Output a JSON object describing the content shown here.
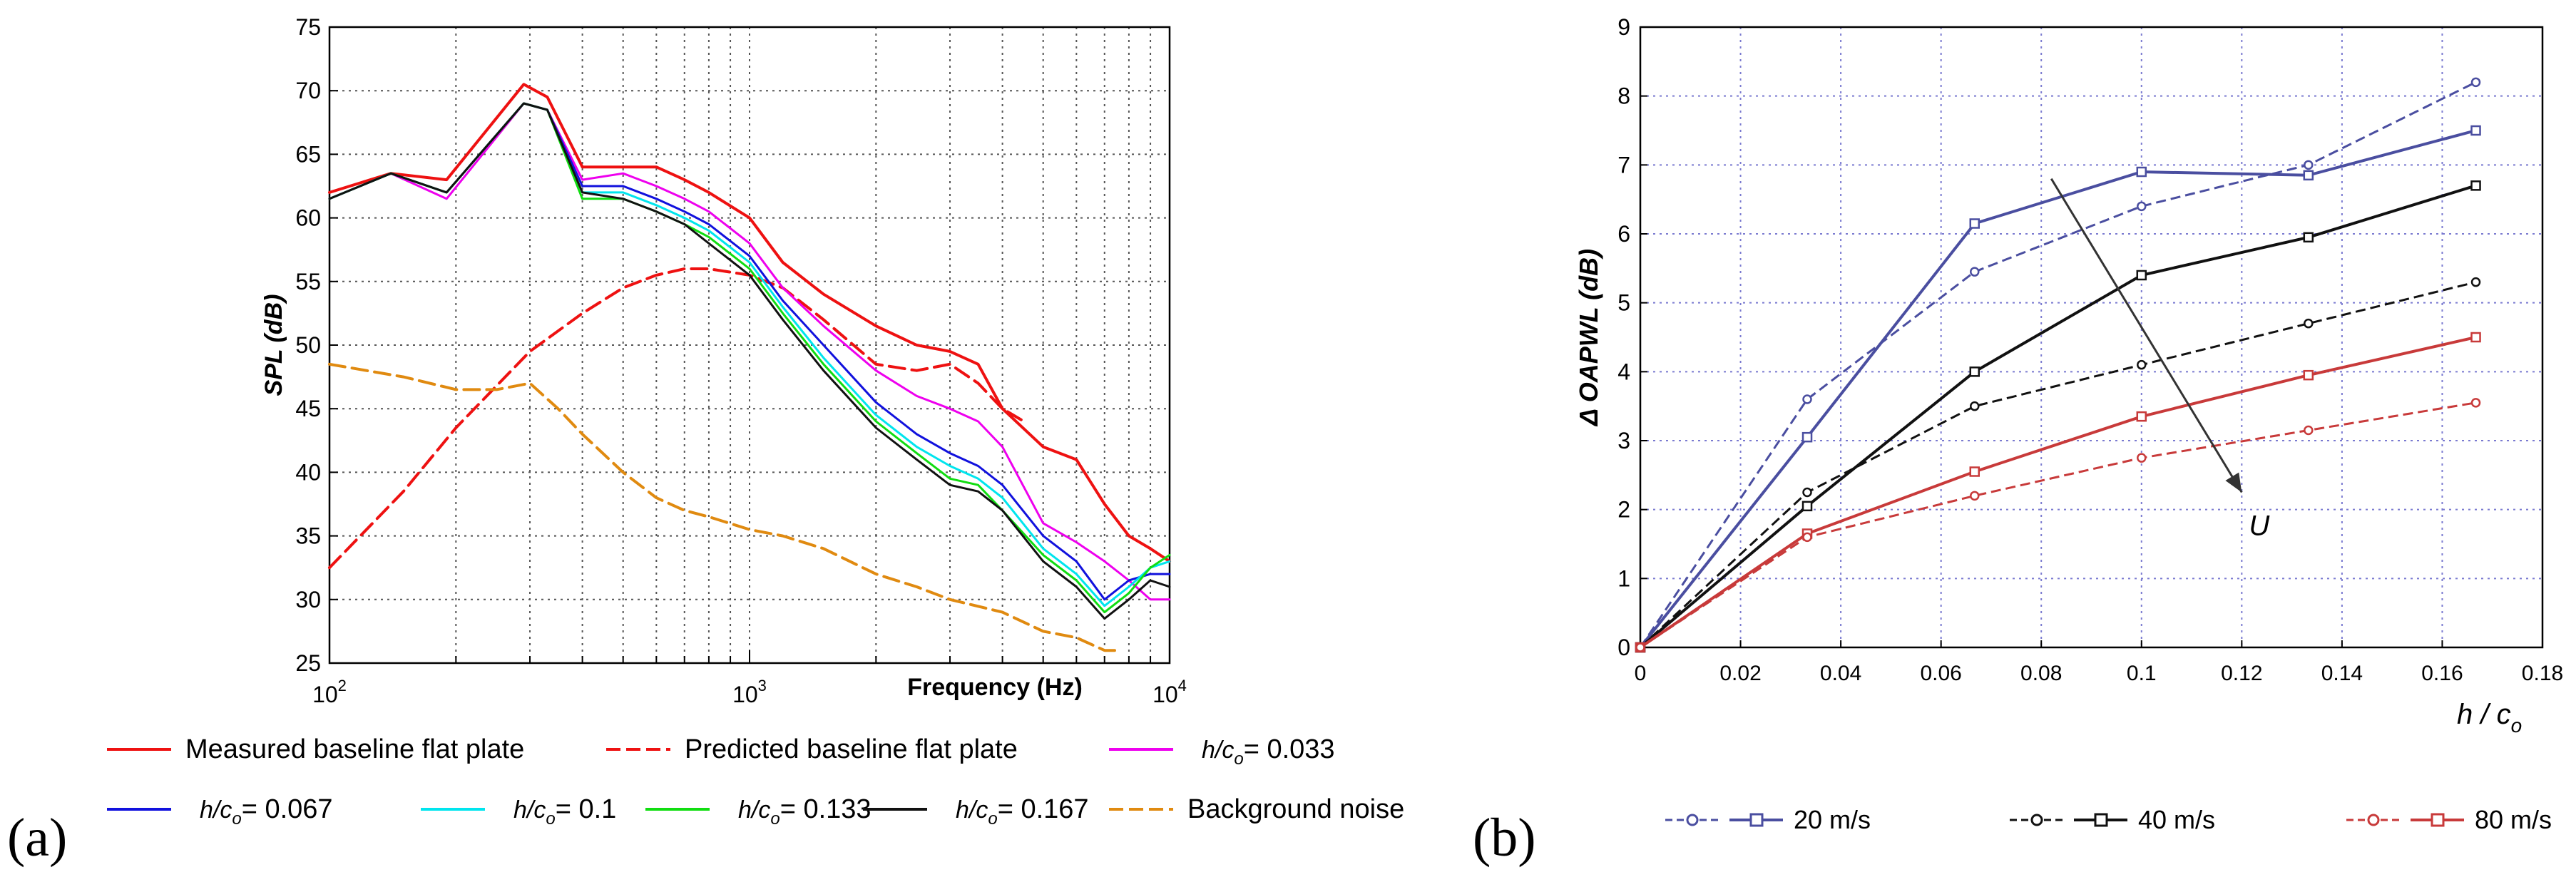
{
  "panels": {
    "a": {
      "label": "(a)"
    },
    "b": {
      "label": "(b)"
    }
  },
  "chart_data": [
    {
      "panel": "a",
      "type": "line",
      "title": "",
      "xlabel": "Frequency (Hz)",
      "ylabel": "SPL (dB)",
      "xscale": "log",
      "xlim": [
        100,
        10000
      ],
      "ylim": [
        25,
        75
      ],
      "yticks": [
        25,
        30,
        35,
        40,
        45,
        50,
        55,
        60,
        65,
        70,
        75
      ],
      "xticks": [
        {
          "value": 100,
          "base": "10",
          "exp": "2"
        },
        {
          "value": 1000,
          "base": "10",
          "exp": "3"
        },
        {
          "value": 10000,
          "base": "10",
          "exp": "4"
        }
      ],
      "grid": true,
      "legend_position": "below",
      "legend_rows": [
        [
          {
            "series": 0,
            "text": "Measured baseline flat plate"
          },
          {
            "series": 1,
            "text": "Predicted baseline flat plate"
          },
          {
            "series": 2,
            "prefix": "h/c",
            "sub": "o",
            "text": "= 0.033"
          }
        ],
        [
          {
            "series": 3,
            "prefix": "h/c",
            "sub": "o",
            "text": "= 0.067"
          },
          {
            "series": 4,
            "prefix": "h/c",
            "sub": "o",
            "text": "= 0.1"
          },
          {
            "series": 5,
            "prefix": "h/c",
            "sub": "o",
            "text": "= 0.133"
          },
          {
            "series": 6,
            "prefix": "h/c",
            "sub": "o",
            "text": "= 0.167"
          },
          {
            "series": 7,
            "text": "Background noise"
          }
        ]
      ],
      "series": [
        {
          "name": "Measured baseline flat plate",
          "color": "#ee1111",
          "dash": "solid",
          "width": 4,
          "x": [
            100,
            140,
            190,
            290,
            330,
            400,
            500,
            600,
            700,
            800,
            1000,
            1200,
            1500,
            2000,
            2500,
            3000,
            3500,
            4000,
            5000,
            6000,
            7000,
            8000,
            9000,
            10000
          ],
          "y": [
            62,
            63.5,
            63,
            70.5,
            69.5,
            64,
            64,
            64,
            63,
            62,
            60,
            56.5,
            54,
            51.5,
            50,
            49.5,
            48.5,
            45,
            42,
            41,
            37.5,
            35,
            34,
            33
          ]
        },
        {
          "name": "Predicted baseline flat plate",
          "color": "#ee1111",
          "dash": "dashed",
          "width": 4,
          "x": [
            100,
            150,
            200,
            300,
            400,
            500,
            600,
            700,
            800,
            1000,
            1200,
            1500,
            2000,
            2500,
            3000,
            3500,
            4000,
            4500
          ],
          "y": [
            32.5,
            38.5,
            43.5,
            49.5,
            52.5,
            54.5,
            55.5,
            56,
            56,
            55.5,
            54.5,
            52,
            48.5,
            48,
            48.5,
            47,
            45,
            44
          ]
        },
        {
          "name": "h/co = 0.033",
          "color": "#ee00ee",
          "dash": "solid",
          "width": 3,
          "x": [
            100,
            140,
            190,
            290,
            330,
            400,
            500,
            600,
            700,
            800,
            1000,
            1200,
            1500,
            2000,
            2500,
            3000,
            3500,
            4000,
            5000,
            6000,
            7000,
            8000,
            9000,
            10000
          ],
          "y": [
            61.5,
            63.5,
            61.5,
            69,
            68.5,
            63,
            63.5,
            62.5,
            61.5,
            60.5,
            58,
            54.5,
            51.5,
            48,
            46,
            45,
            44,
            42,
            36,
            34.5,
            33,
            31.5,
            30,
            30
          ]
        },
        {
          "name": "h/co = 0.067",
          "color": "#1111dd",
          "dash": "solid",
          "width": 3,
          "x": [
            100,
            140,
            190,
            290,
            330,
            400,
            500,
            600,
            700,
            800,
            1000,
            1200,
            1500,
            2000,
            2500,
            3000,
            3500,
            4000,
            5000,
            6000,
            7000,
            8000,
            9000,
            10000
          ],
          "y": [
            61.5,
            63.5,
            62,
            69,
            68.5,
            62.5,
            62.5,
            61.5,
            60.5,
            59.5,
            57,
            53.5,
            50,
            45.5,
            43,
            41.5,
            40.5,
            39,
            35,
            33,
            30,
            31.5,
            32,
            32
          ]
        },
        {
          "name": "h/co = 0.1",
          "color": "#00e5ee",
          "dash": "solid",
          "width": 3,
          "x": [
            100,
            140,
            190,
            290,
            330,
            400,
            500,
            600,
            700,
            800,
            1000,
            1200,
            1500,
            2000,
            2500,
            3000,
            3500,
            4000,
            5000,
            6000,
            7000,
            8000,
            9000,
            10000
          ],
          "y": [
            61.5,
            63.5,
            62,
            69,
            68.5,
            62,
            62,
            61,
            60,
            59,
            56.5,
            53,
            49,
            44.5,
            42,
            40.5,
            39.5,
            38,
            34,
            32,
            29.5,
            31,
            32.5,
            33
          ]
        },
        {
          "name": "h/co = 0.133",
          "color": "#11dd11",
          "dash": "solid",
          "width": 3,
          "x": [
            100,
            140,
            190,
            290,
            330,
            400,
            500,
            600,
            700,
            800,
            1000,
            1200,
            1500,
            2000,
            2500,
            3000,
            3500,
            4000,
            5000,
            6000,
            7000,
            8000,
            9000,
            10000
          ],
          "y": [
            61.5,
            63.5,
            62,
            69,
            68.5,
            61.5,
            61.5,
            60.5,
            59.5,
            58.5,
            56,
            52.5,
            48.5,
            44,
            41.5,
            39.5,
            39,
            37,
            33.5,
            31.5,
            29,
            30.5,
            32.5,
            33.5
          ]
        },
        {
          "name": "h/co = 0.167",
          "color": "#111111",
          "dash": "solid",
          "width": 3,
          "x": [
            100,
            140,
            190,
            290,
            330,
            400,
            500,
            600,
            700,
            800,
            1000,
            1200,
            1500,
            2000,
            2500,
            3000,
            3500,
            4000,
            5000,
            6000,
            7000,
            8000,
            9000,
            10000
          ],
          "y": [
            61.5,
            63.5,
            62,
            69,
            68.5,
            62,
            61.5,
            60.5,
            59.5,
            58,
            55.5,
            52,
            48,
            43.5,
            41,
            39,
            38.5,
            37,
            33,
            31,
            28.5,
            30,
            31.5,
            31
          ]
        },
        {
          "name": "Background noise",
          "color": "#e08a10",
          "dash": "dashed",
          "width": 4,
          "x": [
            100,
            150,
            200,
            250,
            300,
            350,
            400,
            500,
            600,
            700,
            800,
            1000,
            1200,
            1500,
            2000,
            2500,
            3000,
            4000,
            5000,
            6000,
            7000,
            7500
          ],
          "y": [
            48.5,
            47.5,
            46.5,
            46.5,
            47,
            45,
            43,
            40,
            38,
            37,
            36.5,
            35.5,
            35,
            34,
            32,
            31,
            30,
            29,
            27.5,
            27,
            26,
            26
          ]
        }
      ]
    },
    {
      "panel": "b",
      "type": "line",
      "title": "",
      "xlabel": "h / c",
      "xlabel_sub": "o",
      "ylabel": "Δ OAPWL (dB)",
      "xlim": [
        0,
        0.18
      ],
      "ylim": [
        0,
        9
      ],
      "xticks": [
        0,
        0.02,
        0.04,
        0.06,
        0.08,
        0.1,
        0.12,
        0.14,
        0.16,
        0.18
      ],
      "xtick_labels": [
        "0",
        "0.02",
        "0.04",
        "0.06",
        "0.08",
        "0.1",
        "0.12",
        "0.14",
        "0.16",
        "0.18"
      ],
      "yticks": [
        0,
        1,
        2,
        3,
        4,
        5,
        6,
        7,
        8,
        9
      ],
      "grid": true,
      "legend_position": "below",
      "legend": [
        {
          "text": "20 m/s",
          "color": "#4a4ea0"
        },
        {
          "text": "40 m/s",
          "color": "#111111"
        },
        {
          "text": "80 m/s",
          "color": "#c83a3a"
        }
      ],
      "annotation": {
        "text": "U",
        "arrow_from": [
          0.082,
          6.8
        ],
        "arrow_to": [
          0.12,
          2.25
        ]
      },
      "series": [
        {
          "name": "20 m/s",
          "marker": "square",
          "dash": "solid",
          "color": "#4a4ea0",
          "x": [
            0,
            0.0333,
            0.0667,
            0.1,
            0.1333,
            0.1667
          ],
          "y": [
            0,
            3.05,
            6.15,
            6.9,
            6.85,
            7.5
          ]
        },
        {
          "name": "20 m/s",
          "marker": "circle",
          "dash": "dashed",
          "color": "#4a4ea0",
          "x": [
            0,
            0.0333,
            0.0667,
            0.1,
            0.1333,
            0.1667
          ],
          "y": [
            0,
            3.6,
            5.45,
            6.4,
            7.0,
            8.2
          ]
        },
        {
          "name": "40 m/s",
          "marker": "square",
          "dash": "solid",
          "color": "#111111",
          "x": [
            0,
            0.0333,
            0.0667,
            0.1,
            0.1333,
            0.1667
          ],
          "y": [
            0,
            2.05,
            4.0,
            5.4,
            5.95,
            6.7
          ]
        },
        {
          "name": "40 m/s",
          "marker": "circle",
          "dash": "dashed",
          "color": "#111111",
          "x": [
            0,
            0.0333,
            0.0667,
            0.1,
            0.1333,
            0.1667
          ],
          "y": [
            0,
            2.25,
            3.5,
            4.1,
            4.7,
            5.3
          ]
        },
        {
          "name": "80 m/s",
          "marker": "square",
          "dash": "solid",
          "color": "#c83a3a",
          "x": [
            0,
            0.0333,
            0.0667,
            0.1,
            0.1333,
            0.1667
          ],
          "y": [
            0,
            1.65,
            2.55,
            3.35,
            3.95,
            4.5
          ]
        },
        {
          "name": "80 m/s",
          "marker": "circle",
          "dash": "dashed",
          "color": "#c83a3a",
          "x": [
            0,
            0.0333,
            0.0667,
            0.1,
            0.1333,
            0.1667
          ],
          "y": [
            0,
            1.6,
            2.2,
            2.75,
            3.15,
            3.55
          ]
        }
      ]
    }
  ]
}
